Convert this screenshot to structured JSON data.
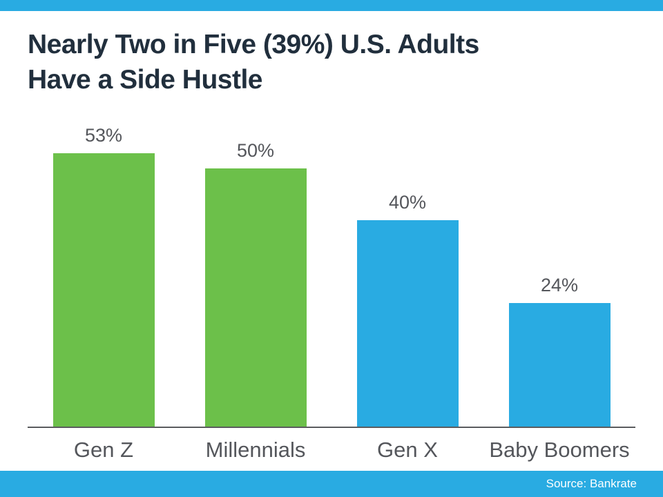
{
  "page": {
    "title_line1": "Nearly Two in Five (39%) U.S. Adults",
    "title_line2": "Have a Side Hustle",
    "source": "Source: Bankrate"
  },
  "colors": {
    "accent_cyan": "#29ABE2",
    "bar_green": "#6CC04A",
    "bar_blue": "#29ABE2",
    "title_text": "#212F3D",
    "label_text": "#54565B",
    "axis_line": "#5A5B5E",
    "source_text": "#FFFFFF"
  },
  "chart_data": {
    "type": "bar",
    "title": "Nearly Two in Five (39%) U.S. Adults Have a Side Hustle",
    "categories": [
      "Gen Z",
      "Millennials",
      "Gen X",
      "Baby Boomers"
    ],
    "values": [
      53,
      50,
      40,
      24
    ],
    "value_labels": [
      "53%",
      "50%",
      "40%",
      "24%"
    ],
    "bar_colors": [
      "#6CC04A",
      "#6CC04A",
      "#29ABE2",
      "#29ABE2"
    ],
    "xlabel": "",
    "ylabel": "",
    "ylim": [
      0,
      58.6
    ],
    "grid": false,
    "legend": false,
    "data_labels_position": "above",
    "source": "Source: Bankrate"
  }
}
